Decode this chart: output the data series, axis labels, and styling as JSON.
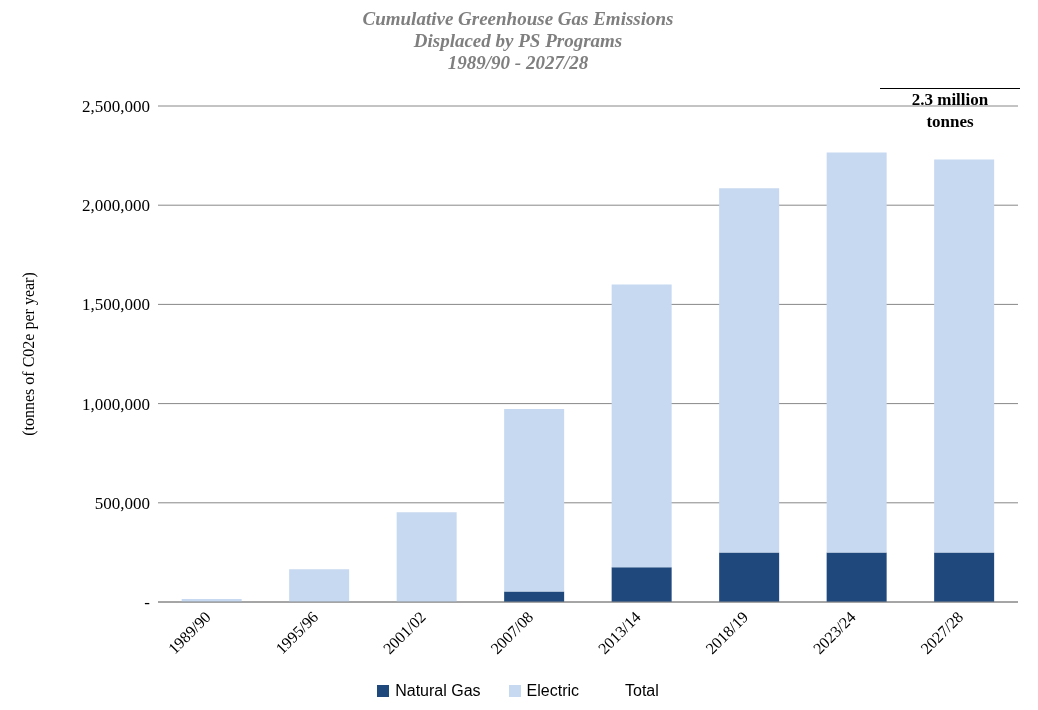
{
  "chart_data": {
    "type": "bar",
    "title": "Cumulative Greenhouse Gas Emissions\nDisplaced by PS Programs\n1989/90 - 2027/28",
    "ylabel": "(tonnes of C02e per year)",
    "annotations": [
      "2.3  million\ntonnes"
    ],
    "categories": [
      "1989/90",
      "1995/96",
      "2001/02",
      "2007/08",
      "2013/14",
      "2018/19",
      "2023/24",
      "2027/28"
    ],
    "series": [
      {
        "name": "Natural Gas",
        "color": "#1f497d",
        "values": [
          0,
          0,
          0,
          53000,
          175000,
          250000,
          250000,
          250000
        ]
      },
      {
        "name": "Electric",
        "color": "#c6d9f1",
        "values": [
          15000,
          165000,
          452000,
          920000,
          1425000,
          1835000,
          2015000,
          1980000
        ]
      },
      {
        "name": "Total",
        "values": [
          null,
          null,
          null,
          null,
          null,
          null,
          null,
          null
        ]
      }
    ],
    "stacked": true,
    "ylim": [
      0,
      2500000
    ],
    "yticks": [
      {
        "value": 0,
        "label": "-"
      },
      {
        "value": 500000,
        "label": "500,000"
      },
      {
        "value": 1000000,
        "label": "1,000,000"
      },
      {
        "value": 1500000,
        "label": "1,500,000"
      },
      {
        "value": 2000000,
        "label": "2,000,000"
      },
      {
        "value": 2500000,
        "label": "2,500,000"
      }
    ],
    "grid": "y",
    "legend": "bottom"
  }
}
